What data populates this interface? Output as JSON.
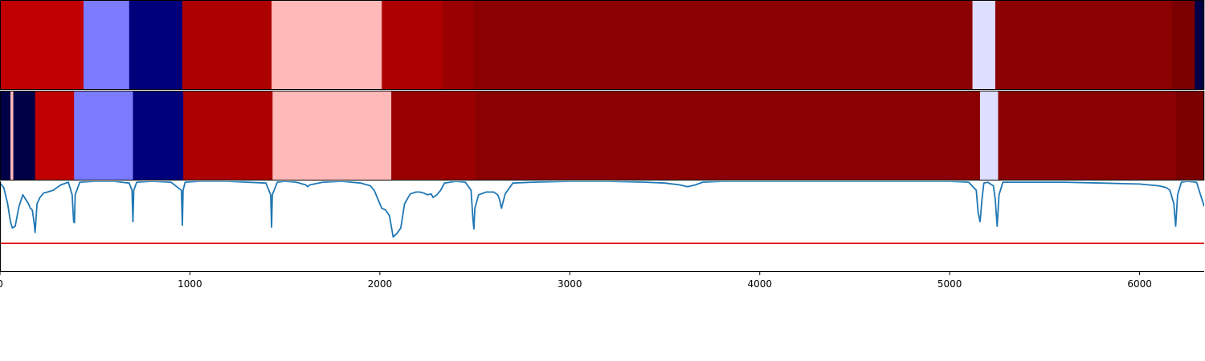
{
  "chart_data": [
    {
      "type": "heatmap",
      "title": "",
      "xlim": [
        0,
        6340
      ],
      "colormap": "seismic",
      "segments": [
        {
          "start": 0,
          "end": 440,
          "color": "#c00000"
        },
        {
          "start": 440,
          "end": 680,
          "color": "#7b7bff"
        },
        {
          "start": 680,
          "end": 960,
          "color": "#00007a"
        },
        {
          "start": 960,
          "end": 1430,
          "color": "#ad0000"
        },
        {
          "start": 1430,
          "end": 2010,
          "color": "#ffb9b9"
        },
        {
          "start": 2010,
          "end": 2330,
          "color": "#ad0000"
        },
        {
          "start": 2330,
          "end": 2490,
          "color": "#9a0000"
        },
        {
          "start": 2490,
          "end": 5120,
          "color": "#8b0000"
        },
        {
          "start": 5120,
          "end": 5240,
          "color": "#dedeff"
        },
        {
          "start": 5240,
          "end": 6170,
          "color": "#8b0000"
        },
        {
          "start": 6170,
          "end": 6290,
          "color": "#7a0000"
        },
        {
          "start": 6290,
          "end": 6340,
          "color": "#000046"
        }
      ]
    },
    {
      "type": "heatmap",
      "title": "",
      "xlim": [
        0,
        6340
      ],
      "colormap": "seismic",
      "segments": [
        {
          "start": 0,
          "end": 55,
          "color": "#000046"
        },
        {
          "start": 55,
          "end": 70,
          "color": "#ffb9b9"
        },
        {
          "start": 70,
          "end": 185,
          "color": "#000046"
        },
        {
          "start": 185,
          "end": 390,
          "color": "#c00000"
        },
        {
          "start": 390,
          "end": 700,
          "color": "#7b7bff"
        },
        {
          "start": 700,
          "end": 965,
          "color": "#00007a"
        },
        {
          "start": 965,
          "end": 1435,
          "color": "#ad0000"
        },
        {
          "start": 1435,
          "end": 2060,
          "color": "#ffb9b9"
        },
        {
          "start": 2060,
          "end": 2500,
          "color": "#9a0000"
        },
        {
          "start": 2500,
          "end": 5160,
          "color": "#8b0000"
        },
        {
          "start": 5160,
          "end": 5255,
          "color": "#dedeff"
        },
        {
          "start": 5255,
          "end": 6190,
          "color": "#8b0000"
        },
        {
          "start": 6190,
          "end": 6340,
          "color": "#7a0000"
        }
      ]
    },
    {
      "type": "line",
      "title": "",
      "xlabel": "",
      "ylabel": "",
      "xlim": [
        0,
        6340
      ],
      "ylim": [
        0,
        1
      ],
      "grid": false,
      "xticks": [
        "0",
        "1000",
        "2000",
        "3000",
        "4000",
        "5000",
        "6000"
      ],
      "xtick_values": [
        0,
        1000,
        2000,
        3000,
        4000,
        5000,
        6000
      ],
      "threshold": {
        "value": 0.31,
        "color": "#e00000"
      },
      "series": [
        {
          "color": "#1f77b4",
          "x": [
            0,
            20,
            40,
            55,
            65,
            80,
            100,
            120,
            135,
            150,
            160,
            170,
            180,
            185,
            195,
            210,
            230,
            250,
            280,
            320,
            360,
            380,
            388,
            392,
            396,
            420,
            500,
            600,
            680,
            695,
            700,
            704,
            720,
            800,
            900,
            955,
            960,
            964,
            975,
            1050,
            1200,
            1400,
            1425,
            1430,
            1434,
            1460,
            1500,
            1560,
            1610,
            1620,
            1630,
            1700,
            1800,
            1900,
            1950,
            1970,
            1990,
            2010,
            2030,
            2050,
            2060,
            2070,
            2080,
            2090,
            2110,
            2130,
            2160,
            2190,
            2210,
            2230,
            2250,
            2270,
            2280,
            2300,
            2320,
            2340,
            2370,
            2400,
            2450,
            2480,
            2490,
            2495,
            2500,
            2520,
            2560,
            2600,
            2620,
            2630,
            2640,
            2660,
            2700,
            2800,
            3000,
            3200,
            3400,
            3500,
            3580,
            3620,
            3660,
            3700,
            3800,
            4000,
            4500,
            5000,
            5100,
            5140,
            5150,
            5160,
            5170,
            5180,
            5200,
            5230,
            5240,
            5250,
            5260,
            5280,
            5400,
            5600,
            5800,
            6000,
            6100,
            6140,
            6160,
            6180,
            6190,
            6200,
            6220,
            6250,
            6300,
            6340
          ],
          "y": [
            0.98,
            0.93,
            0.75,
            0.55,
            0.48,
            0.5,
            0.72,
            0.85,
            0.8,
            0.75,
            0.7,
            0.68,
            0.53,
            0.43,
            0.75,
            0.82,
            0.87,
            0.88,
            0.9,
            0.96,
            0.99,
            0.85,
            0.55,
            0.54,
            0.85,
            0.99,
            1.0,
            1.0,
            0.98,
            0.9,
            0.55,
            0.9,
            0.99,
            1.0,
            0.99,
            0.9,
            0.51,
            0.9,
            0.99,
            1.0,
            1.0,
            0.98,
            0.85,
            0.49,
            0.85,
            0.99,
            1.0,
            0.99,
            0.96,
            0.94,
            0.96,
            0.99,
            1.0,
            0.98,
            0.95,
            0.9,
            0.8,
            0.7,
            0.68,
            0.62,
            0.5,
            0.38,
            0.4,
            0.42,
            0.48,
            0.75,
            0.86,
            0.88,
            0.88,
            0.87,
            0.85,
            0.86,
            0.82,
            0.85,
            0.9,
            0.98,
            0.99,
            1.0,
            0.99,
            0.9,
            0.58,
            0.47,
            0.7,
            0.85,
            0.88,
            0.88,
            0.85,
            0.8,
            0.7,
            0.86,
            0.98,
            0.99,
            1.0,
            1.0,
            0.99,
            0.98,
            0.96,
            0.94,
            0.96,
            0.99,
            1.0,
            1.0,
            1.0,
            1.0,
            0.99,
            0.9,
            0.65,
            0.55,
            0.8,
            0.98,
            0.99,
            0.95,
            0.8,
            0.5,
            0.85,
            0.99,
            0.99,
            0.99,
            0.98,
            0.97,
            0.95,
            0.93,
            0.9,
            0.75,
            0.5,
            0.85,
            0.99,
            1.0,
            0.99,
            0.72
          ]
        }
      ]
    }
  ]
}
